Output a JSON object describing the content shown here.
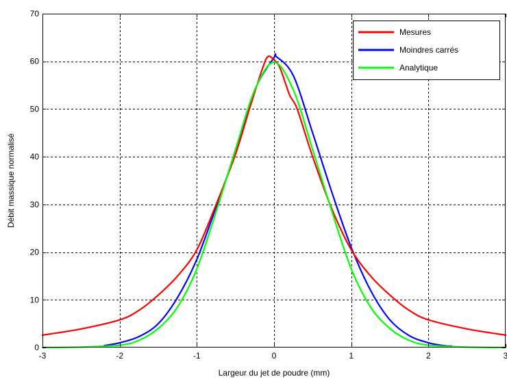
{
  "chart_data": {
    "type": "line",
    "title": "",
    "xlabel": "Largeur du jet de poudre (mm)",
    "ylabel": "Débit massique normalisé",
    "xlim": [
      -3,
      3
    ],
    "ylim": [
      0,
      70
    ],
    "xticks": [
      -3,
      -2,
      -1,
      0,
      1,
      2,
      3
    ],
    "yticks": [
      0,
      10,
      20,
      30,
      40,
      50,
      60,
      70
    ],
    "xtick_labels": [
      "-3",
      "-2",
      "-1",
      "0",
      "1",
      "2",
      "3"
    ],
    "ytick_labels": [
      "0",
      "10",
      "20",
      "30",
      "40",
      "50",
      "60",
      "70"
    ],
    "grid": true,
    "legend_position": "top-right",
    "series": [
      {
        "name": "Mesures",
        "color": "#ff0000",
        "x": [
          -3.0,
          -2.5,
          -2.0,
          -1.75,
          -1.5,
          -1.25,
          -1.0,
          -0.75,
          -0.5,
          -0.3,
          -0.15,
          -0.08,
          0.0,
          0.08,
          0.2,
          0.3,
          0.5,
          0.75,
          1.0,
          1.25,
          1.5,
          1.75,
          2.0,
          2.5,
          3.0
        ],
        "y": [
          2.6,
          3.9,
          5.8,
          7.8,
          11.0,
          15.0,
          20.5,
          30.0,
          40.5,
          51.0,
          58.5,
          61.0,
          60.3,
          58.5,
          53.0,
          50.0,
          40.0,
          29.0,
          20.5,
          15.0,
          11.0,
          7.8,
          5.8,
          3.9,
          2.6
        ]
      },
      {
        "name": "Moindres carrés",
        "color": "#0000ff",
        "x": [
          -2.2,
          -2.0,
          -1.75,
          -1.5,
          -1.25,
          -1.0,
          -0.75,
          -0.5,
          -0.25,
          0.0,
          0.03,
          0.25,
          0.5,
          0.75,
          1.0,
          1.25,
          1.5,
          1.75,
          2.0,
          2.2,
          2.3
        ],
        "y": [
          0.4,
          1.0,
          2.3,
          5.0,
          10.5,
          18.5,
          29.5,
          41.0,
          54.0,
          60.8,
          61.0,
          57.0,
          45.0,
          32.5,
          21.0,
          12.0,
          5.8,
          2.5,
          1.0,
          0.4,
          0.3
        ]
      },
      {
        "name": "Analytique",
        "color": "#00ff00",
        "x": [
          -3.0,
          -2.5,
          -2.0,
          -1.75,
          -1.5,
          -1.25,
          -1.0,
          -0.75,
          -0.5,
          -0.25,
          0.0,
          0.25,
          0.5,
          0.75,
          1.0,
          1.25,
          1.5,
          1.75,
          2.0,
          2.5,
          3.0
        ],
        "y": [
          0.0,
          0.1,
          0.5,
          1.5,
          4.0,
          8.5,
          16.5,
          28.5,
          41.5,
          54.0,
          59.8,
          54.0,
          41.5,
          28.5,
          16.5,
          8.5,
          4.0,
          1.5,
          0.5,
          0.1,
          0.0
        ]
      }
    ]
  }
}
